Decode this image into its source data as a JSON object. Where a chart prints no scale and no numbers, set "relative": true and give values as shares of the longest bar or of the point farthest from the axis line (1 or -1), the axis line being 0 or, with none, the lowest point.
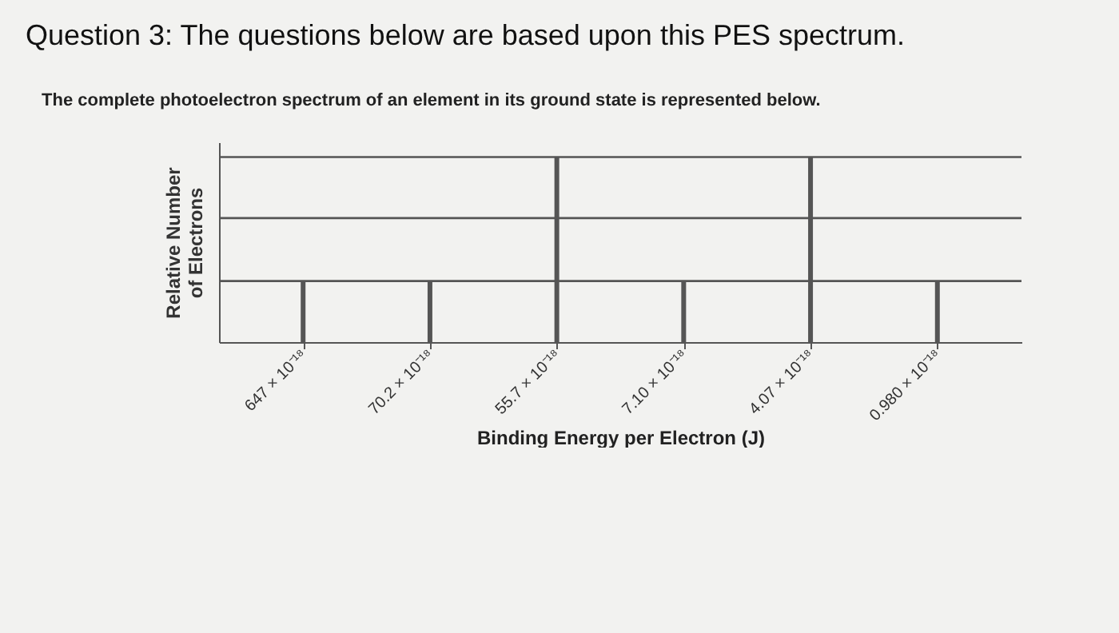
{
  "chart_data": {
    "type": "bar",
    "title": "Question 3: The questions below are based upon this PES spectrum.",
    "subtitle": "The complete photoelectron spectrum of an element in its ground state is represented below.",
    "xlabel": "Binding Energy per Electron (J)",
    "ylabel": "Relative Number\nof Electrons",
    "categories": [
      "647 × 10⁻¹⁸",
      "70.2 × 10⁻¹⁸",
      "55.7 × 10⁻¹⁸",
      "7.10 × 10⁻¹⁸",
      "4.07 × 10⁻¹⁸",
      "0.980 × 10⁻¹⁸"
    ],
    "values": [
      0.33,
      0.33,
      1,
      0.33,
      1,
      0.33
    ],
    "color": "#555555",
    "relative": true,
    "ref_lines": [
      {
        "axis": "y",
        "value": 0.33,
        "color": "#555555"
      },
      {
        "axis": "y",
        "value": 0.67,
        "color": "#555555"
      },
      {
        "axis": "y",
        "value": 1,
        "color": "#555555"
      }
    ]
  }
}
